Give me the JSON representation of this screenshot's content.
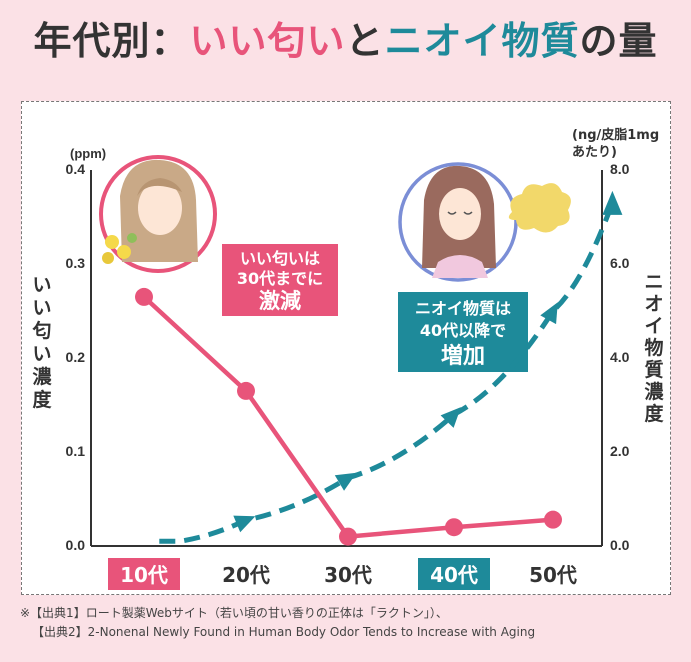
{
  "title": {
    "prefix": "年代別：",
    "good": "いい匂い",
    "mid": "と",
    "bad": "ニオイ物質",
    "suffix": "の量"
  },
  "colors": {
    "pink": "#e8547a",
    "teal": "#1e8a9a",
    "bg": "#fbe1e6",
    "yellow_blob": "#f2d86a"
  },
  "chart_data": {
    "type": "line",
    "categories": [
      "10代",
      "20代",
      "30代",
      "40代",
      "50代"
    ],
    "highlighted_categories": [
      "10代",
      "40代"
    ],
    "series": [
      {
        "name": "いい匂い",
        "axis": "left",
        "style": "solid",
        "color": "#e8547a",
        "values": [
          0.265,
          0.165,
          0.01,
          0.02,
          0.028
        ]
      },
      {
        "name": "ニオイ物質",
        "axis": "right",
        "style": "dashed",
        "color": "#1e8a9a",
        "x": [
          0.15,
          0.35,
          1.0,
          2.0,
          3.0,
          4.0,
          4.6
        ],
        "values": [
          0.1,
          0.1,
          0.55,
          1.45,
          2.8,
          5.0,
          7.3
        ]
      }
    ],
    "left_axis": {
      "label": "いい匂い濃度",
      "unit": "(ppm)",
      "range": [
        0,
        0.4
      ],
      "ticks": [
        "0.0",
        "0.1",
        "0.2",
        "0.3",
        "0.4"
      ]
    },
    "right_axis": {
      "label": "ニオイ物質濃度",
      "unit_line1": "(ng/皮脂1mg",
      "unit_line2": "あたり)",
      "range": [
        0,
        8
      ],
      "ticks": [
        "0.0",
        "2.0",
        "4.0",
        "6.0",
        "8.0"
      ]
    },
    "callouts": {
      "young": {
        "line1": "いい匂いは",
        "line2": "30代までに",
        "line3": "激減"
      },
      "older": {
        "line1": "ニオイ物質は",
        "line2": "40代以降で",
        "line3": "増加"
      }
    }
  },
  "footnotes": [
    "※【出典1】ロート製薬Webサイト（若い頃の甘い香りの正体は「ラクトン」）、",
    "【出典2】2-Nonenal Newly Found in Human Body Odor Tends to Increase with Aging"
  ]
}
